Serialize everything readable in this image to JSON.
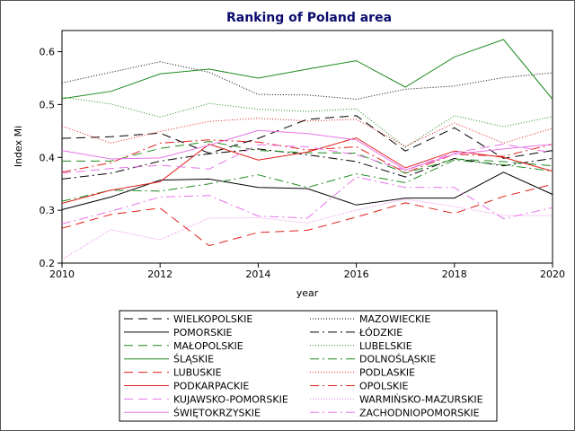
{
  "chart_data": {
    "type": "line",
    "title": "Ranking of Poland area",
    "xlabel": "year",
    "ylabel": "Index Mi",
    "xlim": [
      2010,
      2020
    ],
    "ylim": [
      0.2,
      0.64
    ],
    "x_ticks": [
      2010,
      2012,
      2014,
      2016,
      2018,
      2020
    ],
    "y_ticks": [
      0.2,
      0.3,
      0.4,
      0.5,
      0.6
    ],
    "x": [
      2010,
      2011,
      2012,
      2013,
      2014,
      2015,
      2016,
      2017,
      2018,
      2019,
      2020
    ],
    "legend_position": "bottom",
    "series": [
      {
        "name": "WIELKOPOLSKIE",
        "color": "#000000",
        "dash": "10,6",
        "values": [
          0.436,
          0.439,
          0.446,
          0.408,
          0.436,
          0.472,
          0.479,
          0.412,
          0.456,
          0.398,
          0.413
        ]
      },
      {
        "name": "MAZOWIECKIE",
        "color": "#000000",
        "dash": "1,2",
        "values": [
          0.541,
          0.561,
          0.581,
          0.561,
          0.519,
          0.518,
          0.51,
          0.529,
          0.535,
          0.551,
          0.56
        ]
      },
      {
        "name": "POMORSKIE",
        "color": "#000000",
        "dash": "",
        "values": [
          0.301,
          0.325,
          0.357,
          0.359,
          0.343,
          0.341,
          0.31,
          0.323,
          0.323,
          0.372,
          0.33
        ]
      },
      {
        "name": "ŁÓDZKIE",
        "color": "#000000",
        "dash": "10,4,2,4",
        "values": [
          0.359,
          0.37,
          0.393,
          0.407,
          0.416,
          0.405,
          0.392,
          0.363,
          0.398,
          0.384,
          0.398
        ]
      },
      {
        "name": "MAŁOPOLSKIE",
        "color": "#1e8a1e",
        "dash": "10,6",
        "values": [
          0.393,
          0.393,
          0.417,
          0.43,
          0.413,
          0.409,
          0.408,
          0.37,
          0.397,
          0.392,
          0.384
        ]
      },
      {
        "name": "LUBELSKIE",
        "color": "#1e8a1e",
        "dash": "1,2",
        "values": [
          0.514,
          0.501,
          0.476,
          0.502,
          0.491,
          0.487,
          0.492,
          0.419,
          0.479,
          0.458,
          0.477
        ]
      },
      {
        "name": "ŚLĄSKIE",
        "color": "#1e8a1e",
        "dash": "",
        "values": [
          0.511,
          0.525,
          0.558,
          0.567,
          0.55,
          0.567,
          0.583,
          0.533,
          0.59,
          0.623,
          0.51
        ]
      },
      {
        "name": "DOLNOŚLĄSKIE",
        "color": "#1e8a1e",
        "dash": "10,4,2,4",
        "values": [
          0.317,
          0.338,
          0.336,
          0.35,
          0.367,
          0.343,
          0.369,
          0.352,
          0.395,
          0.386,
          0.374
        ]
      },
      {
        "name": "LUBUSKIE",
        "color": "#e0201e",
        "dash": "10,6",
        "values": [
          0.266,
          0.292,
          0.304,
          0.233,
          0.258,
          0.262,
          0.287,
          0.314,
          0.294,
          0.326,
          0.349
        ]
      },
      {
        "name": "PODLASKIE",
        "color": "#e0201e",
        "dash": "1,2",
        "values": [
          0.459,
          0.427,
          0.449,
          0.468,
          0.474,
          0.469,
          0.472,
          0.421,
          0.465,
          0.427,
          0.455
        ]
      },
      {
        "name": "PODKARPACKIE",
        "color": "#e0201e",
        "dash": "",
        "values": [
          0.313,
          0.338,
          0.354,
          0.425,
          0.395,
          0.41,
          0.437,
          0.38,
          0.412,
          0.4,
          0.374
        ]
      },
      {
        "name": "OPOLSKIE",
        "color": "#e0201e",
        "dash": "10,4,2,4",
        "values": [
          0.372,
          0.39,
          0.427,
          0.433,
          0.429,
          0.414,
          0.42,
          0.371,
          0.406,
          0.402,
          0.425
        ]
      },
      {
        "name": "KUJAWSKO-POMORSKIE",
        "color": "#e874e8",
        "dash": "10,6",
        "values": [
          0.37,
          0.379,
          0.385,
          0.378,
          0.424,
          0.42,
          0.405,
          0.376,
          0.409,
          0.425,
          0.409
        ]
      },
      {
        "name": "WARMIŃSKO-MAZURSKIE",
        "color": "#e874e8",
        "dash": "1,2",
        "values": [
          0.207,
          0.263,
          0.244,
          0.285,
          0.286,
          0.276,
          0.3,
          0.321,
          0.307,
          0.29,
          0.29
        ]
      },
      {
        "name": "ŚWIĘTOKRZYSKIE",
        "color": "#e874e8",
        "dash": "",
        "values": [
          0.413,
          0.397,
          0.399,
          0.423,
          0.451,
          0.445,
          0.433,
          0.376,
          0.406,
          0.416,
          0.425
        ]
      },
      {
        "name": "ZACHODNIOPOMORSKIE",
        "color": "#e874e8",
        "dash": "10,4,2,4",
        "values": [
          0.274,
          0.298,
          0.325,
          0.328,
          0.289,
          0.285,
          0.363,
          0.343,
          0.343,
          0.284,
          0.305
        ]
      }
    ]
  }
}
